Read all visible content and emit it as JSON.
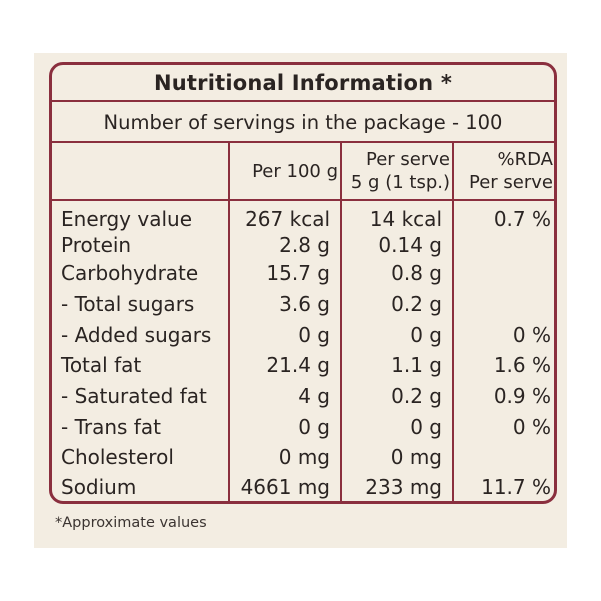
{
  "title": "Nutritional Information *",
  "servings_line": "Number of servings in the package - 100",
  "columns": {
    "per100": "Per 100 g",
    "perserve_line1": "Per serve",
    "perserve_line2": "5 g (1 tsp.)",
    "rda_line1": "%RDA",
    "rda_line2": "Per serve"
  },
  "rows": [
    {
      "name": "Energy value",
      "per100": "267 kcal",
      "perserve": "14 kcal",
      "rda": "0.7 %"
    },
    {
      "name": "Protein",
      "per100": "2.8 g",
      "perserve": "0.14 g",
      "rda": ""
    },
    {
      "name": "Carbohydrate",
      "per100": "15.7 g",
      "perserve": "0.8 g",
      "rda": ""
    },
    {
      "name": " - Total sugars",
      "per100": "3.6 g",
      "perserve": "0.2 g",
      "rda": ""
    },
    {
      "name": " - Added sugars",
      "per100": "0 g",
      "perserve": "0 g",
      "rda": "0 %"
    },
    {
      "name": "Total fat",
      "per100": "21.4 g",
      "perserve": "1.1 g",
      "rda": "1.6 %"
    },
    {
      "name": " - Saturated fat",
      "per100": "4 g",
      "perserve": "0.2 g",
      "rda": "0.9 %"
    },
    {
      "name": " - Trans fat",
      "per100": "0 g",
      "perserve": "0 g",
      "rda": "0 %"
    },
    {
      "name": "Cholesterol",
      "per100": "0 mg",
      "perserve": "0 mg",
      "rda": ""
    },
    {
      "name": "Sodium",
      "per100": "4661 mg",
      "perserve": "233 mg",
      "rda": "11.7 %"
    }
  ],
  "footnote": "*Approximate values",
  "colors": {
    "border": "#8a2f3e",
    "background": "#f3ede2"
  }
}
